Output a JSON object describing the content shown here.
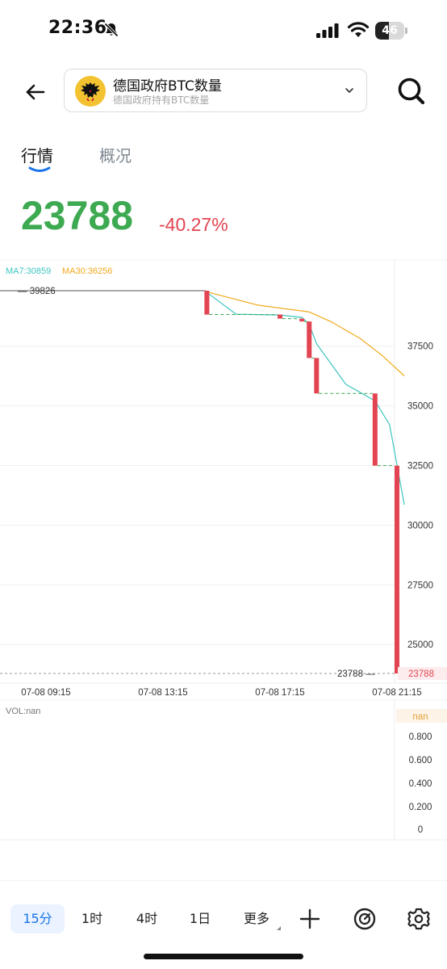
{
  "status_bar": {
    "time": "22:36",
    "battery": "46",
    "battery_level": 0.46
  },
  "header": {
    "title": "德国政府BTC数量",
    "subtitle": "德国政府持有BTC数量"
  },
  "tabs": [
    {
      "label": "行情",
      "active": true
    },
    {
      "label": "概况",
      "active": false
    }
  ],
  "price": {
    "value": "23788",
    "change": "-40.27%"
  },
  "colors": {
    "up": "#3daa52",
    "down": "#e24451",
    "ma7": "#3ec5c0",
    "ma30": "#f2a91c",
    "accent": "#1a73e8"
  },
  "chart_data": {
    "type": "candlestick",
    "ma_legend": {
      "ma7": "MA7:30859",
      "ma30": "MA30:36256"
    },
    "ylim": [
      23000,
      40500
    ],
    "y_ticks": [
      "37500",
      "35000",
      "32500",
      "30000",
      "27500",
      "25000"
    ],
    "x_ticks": [
      "07-08 09:15",
      "07-08 13:15",
      "07-08 17:15",
      "07-08 21:15"
    ],
    "high_label": "39826",
    "low_label": "23788",
    "last_price_label": "23788",
    "candles": [
      {
        "t": "07-08 09:00",
        "open": 39826,
        "close": 39826
      },
      {
        "t": "07-08 09:15",
        "open": 39826,
        "close": 39826
      },
      {
        "t": "07-08 10:00",
        "open": 39826,
        "close": 39826
      },
      {
        "t": "07-08 11:00",
        "open": 39826,
        "close": 39826
      },
      {
        "t": "07-08 12:00",
        "open": 39826,
        "close": 39826
      },
      {
        "t": "07-08 13:00",
        "open": 39826,
        "close": 39826
      },
      {
        "t": "07-08 13:15",
        "open": 39826,
        "close": 39826
      },
      {
        "t": "07-08 14:00",
        "open": 39826,
        "close": 39826
      },
      {
        "t": "07-08 14:45",
        "open": 39826,
        "close": 38826
      },
      {
        "t": "07-08 17:15",
        "open": 38826,
        "close": 38656
      },
      {
        "t": "07-08 18:00",
        "open": 38656,
        "close": 38536
      },
      {
        "t": "07-08 18:15",
        "open": 38536,
        "close": 37006
      },
      {
        "t": "07-08 18:30",
        "open": 37006,
        "close": 35521
      },
      {
        "t": "07-08 20:30",
        "open": 35521,
        "close": 32495
      },
      {
        "t": "07-08 21:15",
        "open": 32495,
        "close": 23788
      }
    ],
    "ma7": [
      {
        "t": "07-08 14:45",
        "v": 39750
      },
      {
        "t": "07-08 15:45",
        "v": 38840
      },
      {
        "t": "07-08 17:15",
        "v": 38806
      },
      {
        "t": "07-08 18:00",
        "v": 38706
      },
      {
        "t": "07-08 18:15",
        "v": 38406
      },
      {
        "t": "07-08 18:30",
        "v": 37606
      },
      {
        "t": "07-08 19:30",
        "v": 35906
      },
      {
        "t": "07-08 20:30",
        "v": 35206
      },
      {
        "t": "07-08 21:00",
        "v": 34206
      },
      {
        "t": "07-08 21:30",
        "v": 30859
      }
    ],
    "ma30": [
      {
        "t": "07-08 14:45",
        "v": 39780
      },
      {
        "t": "07-08 16:30",
        "v": 39220
      },
      {
        "t": "07-08 18:15",
        "v": 38936
      },
      {
        "t": "07-08 19:00",
        "v": 38526
      },
      {
        "t": "07-08 20:00",
        "v": 37816
      },
      {
        "t": "07-08 20:45",
        "v": 37106
      },
      {
        "t": "07-08 21:30",
        "v": 36256
      }
    ],
    "volume": {
      "label": "VOL:nan",
      "current_label": "nan",
      "y_ticks": [
        "0.800",
        "0.600",
        "0.400",
        "0.200",
        "0"
      ]
    }
  },
  "toolbar": {
    "intervals": [
      {
        "label": "15分",
        "active": true
      },
      {
        "label": "1时",
        "active": false
      },
      {
        "label": "4时",
        "active": false
      },
      {
        "label": "1日",
        "active": false
      }
    ],
    "more_label": "更多",
    "icons": [
      "plus-icon",
      "target-icon",
      "gear-icon"
    ]
  }
}
